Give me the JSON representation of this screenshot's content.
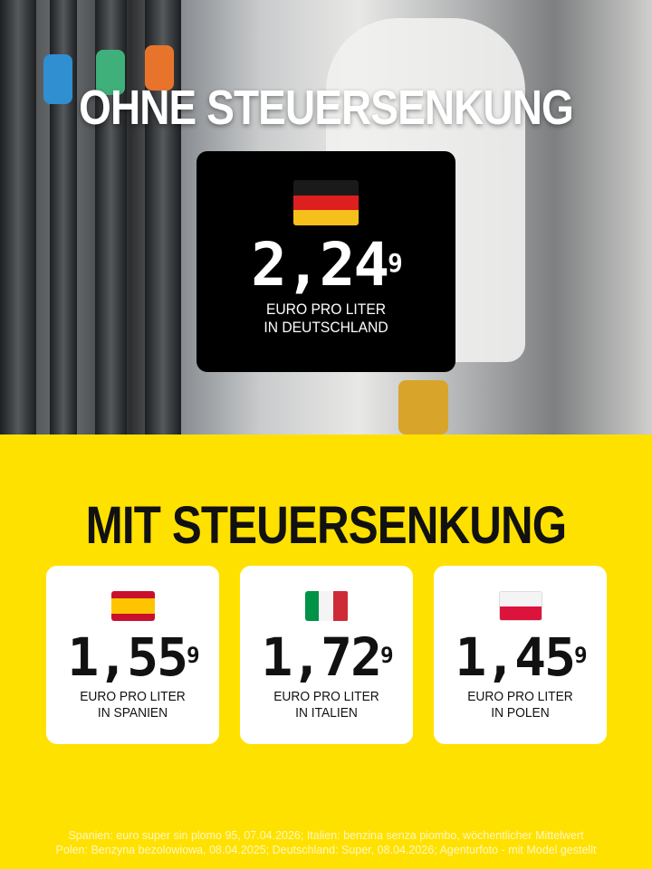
{
  "header": {
    "title": "OHNE STEUERSENKUNG"
  },
  "germany": {
    "flag": "germany-flag",
    "price_main": "2,24",
    "price_sup": "9",
    "line1": "EURO PRO LITER",
    "line2": "IN DEUTSCHLAND"
  },
  "section": {
    "title": "MIT STEUERSENKUNG"
  },
  "countries": [
    {
      "flag": "spain-flag",
      "price_main": "1,55",
      "price_sup": "9",
      "line1": "EURO PRO LITER",
      "line2": "IN SPANIEN"
    },
    {
      "flag": "italy-flag",
      "price_main": "1,72",
      "price_sup": "9",
      "line1": "EURO PRO LITER",
      "line2": "IN ITALIEN"
    },
    {
      "flag": "poland-flag",
      "price_main": "1,45",
      "price_sup": "9",
      "line1": "EURO PRO LITER",
      "line2": "IN POLEN"
    }
  ],
  "footer": {
    "line1": "Spanien: euro super sin plomo 95, 07.04.2026; Italien: benzina senza piombo, wöchentlicher Mittelwert",
    "line2": "Polen: Benzyna bezolowiowa, 08.04.2025; Deutschland: Super, 08.04.2026; Agenturfoto - mit Model gestellt"
  },
  "colors": {
    "background": "#ffe100",
    "card_dark": "#000000",
    "card_light": "#ffffff"
  }
}
